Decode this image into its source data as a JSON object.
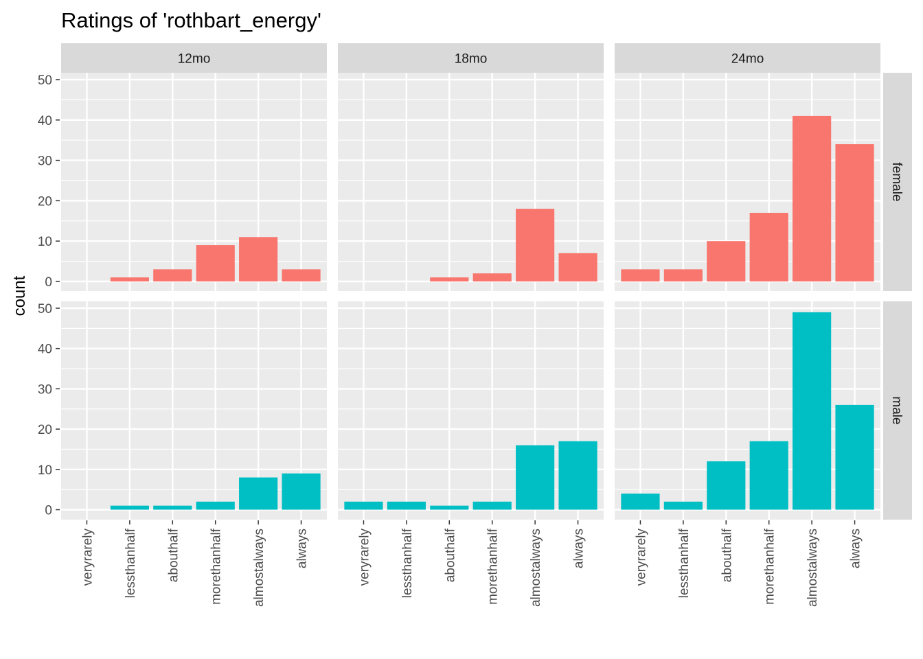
{
  "chart_data": {
    "type": "bar",
    "title": "Ratings of 'rothbart_energy'",
    "xlabel": "",
    "ylabel": "count",
    "ylim": [
      0,
      50
    ],
    "yticks": [
      0,
      10,
      20,
      30,
      40,
      50
    ],
    "grid": true,
    "legend": "none",
    "categories": [
      "veryrarely",
      "lessthanhalf",
      "abouthalf",
      "morethanhalf",
      "almostalways",
      "always"
    ],
    "facet_cols": [
      "12mo",
      "18mo",
      "24mo"
    ],
    "facet_rows": [
      "female",
      "male"
    ],
    "panels": [
      {
        "row": "female",
        "col": "12mo",
        "values": [
          0,
          1,
          3,
          9,
          11,
          3
        ]
      },
      {
        "row": "female",
        "col": "18mo",
        "values": [
          0,
          0,
          1,
          2,
          18,
          7
        ]
      },
      {
        "row": "female",
        "col": "24mo",
        "values": [
          3,
          3,
          10,
          17,
          41,
          34
        ]
      },
      {
        "row": "male",
        "col": "12mo",
        "values": [
          0,
          1,
          1,
          2,
          8,
          9
        ]
      },
      {
        "row": "male",
        "col": "18mo",
        "values": [
          2,
          2,
          1,
          2,
          16,
          17
        ]
      },
      {
        "row": "male",
        "col": "24mo",
        "values": [
          4,
          2,
          12,
          17,
          49,
          26
        ]
      }
    ],
    "colors": {
      "female": "#F8766D",
      "male": "#00BFC4"
    }
  }
}
